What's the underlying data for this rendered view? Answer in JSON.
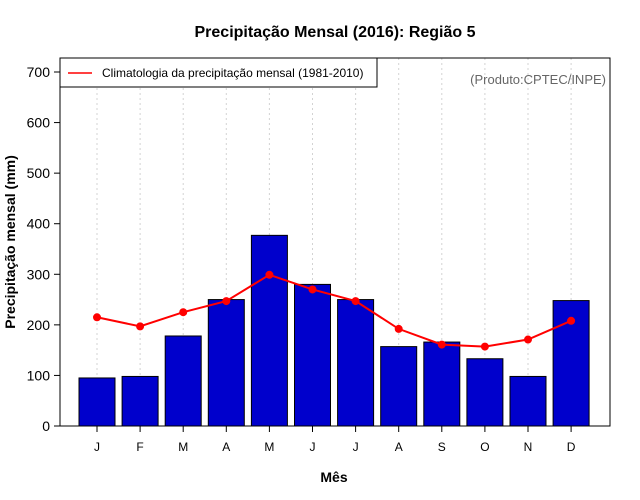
{
  "chart_data": {
    "type": "bar",
    "title": "Precipitação Mensal (2016): Região 5",
    "xlabel": "Mês",
    "ylabel": "Precipitação mensal (mm)",
    "ylim": [
      0,
      700
    ],
    "yticks": [
      0,
      100,
      200,
      300,
      400,
      500,
      600,
      700
    ],
    "grid": "vertical-dotted",
    "categories": [
      "J",
      "F",
      "M",
      "A",
      "M",
      "J",
      "J",
      "A",
      "S",
      "O",
      "N",
      "D"
    ],
    "series": [
      {
        "name": "Precipitação mensal (2016)",
        "type": "bar",
        "values": [
          95,
          98,
          178,
          250,
          377,
          280,
          250,
          157,
          166,
          133,
          98,
          248
        ]
      },
      {
        "name": "Climatologia da precipitação mensal (1981-2010)",
        "type": "line",
        "values": [
          215,
          197,
          225,
          247,
          299,
          270,
          247,
          192,
          161,
          157,
          171,
          208
        ]
      }
    ],
    "legend": {
      "position": "top-left",
      "entries": [
        "Climatologia da precipitação mensal (1981-2010)"
      ]
    },
    "annotation": "(Produto:CPTEC/INPE)",
    "colors": {
      "bar_fill": "#0000cc",
      "bar_stroke": "#000000",
      "line": "#ff0000",
      "grid": "#d3d3d3",
      "annotation": "#666666"
    }
  }
}
